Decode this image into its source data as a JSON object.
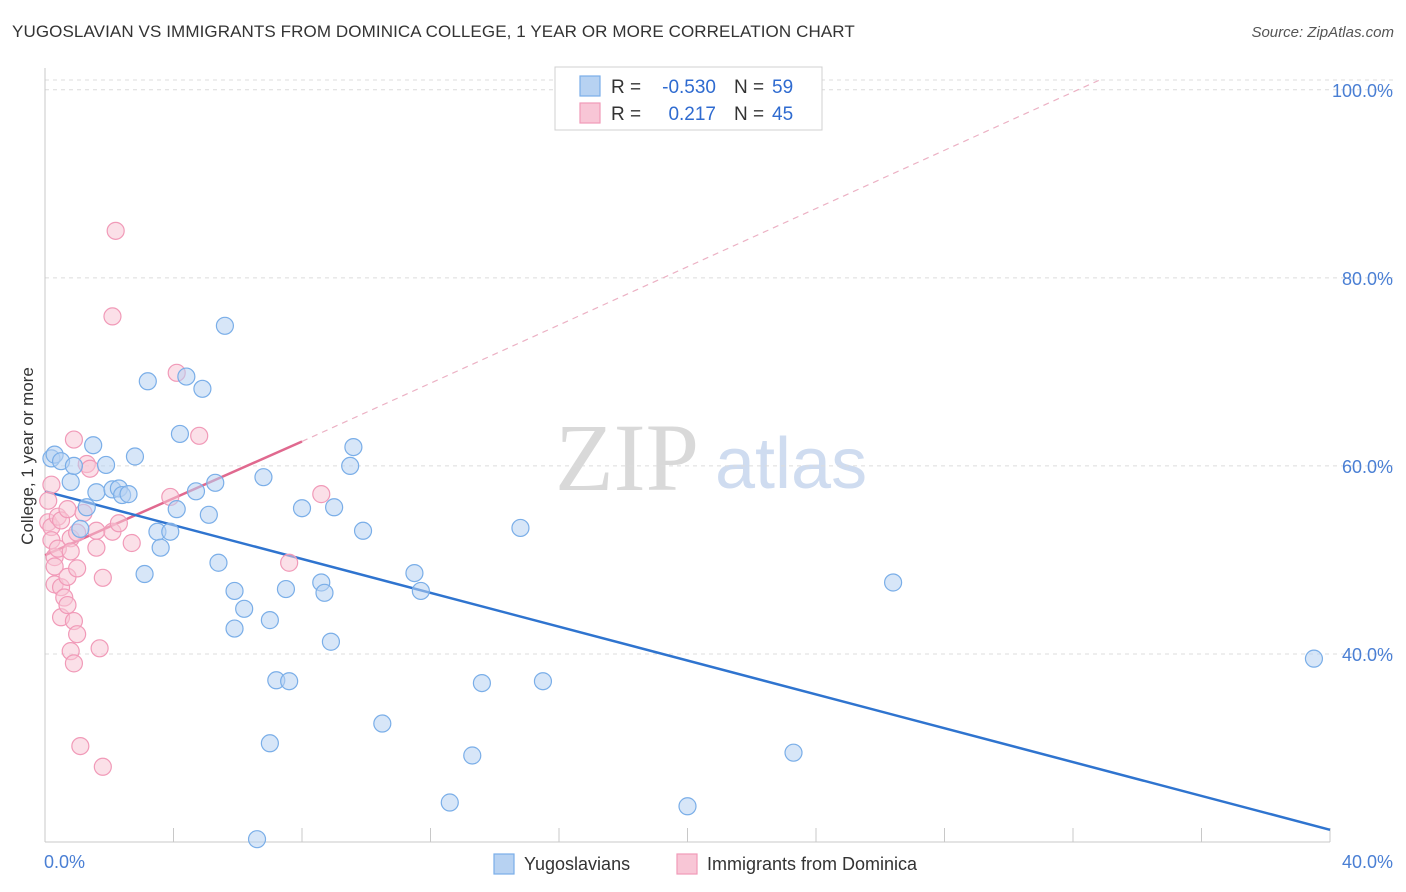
{
  "title": "YUGOSLAVIAN VS IMMIGRANTS FROM DOMINICA COLLEGE, 1 YEAR OR MORE CORRELATION CHART",
  "source": "Source: ZipAtlas.com",
  "watermark": {
    "part1": "ZIP",
    "part2": "atlas"
  },
  "legend": {
    "rows": [
      {
        "r_label": "R =",
        "r_value": "-0.530",
        "n_label": "N =",
        "n_value": "59"
      },
      {
        "r_label": "R =",
        "r_value": "0.217",
        "n_label": "N =",
        "n_value": "45"
      }
    ]
  },
  "chart_data": {
    "type": "scatter",
    "title": "YUGOSLAVIAN VS IMMIGRANTS FROM DOMINICA COLLEGE, 1 YEAR OR MORE CORRELATION CHART",
    "xlabel": "",
    "ylabel": "College, 1 year or more",
    "xlim": [
      0,
      40
    ],
    "ylim": [
      20,
      102
    ],
    "x_tick_labels": [
      "0.0%",
      "40.0%"
    ],
    "y_ticks": [
      40,
      60,
      80,
      100
    ],
    "y_tick_labels": [
      "40.0%",
      "60.0%",
      "80.0%",
      "100.0%"
    ],
    "grid": true,
    "legend_position": "top-center",
    "series": [
      {
        "name": "Yugoslavians",
        "color": "#7aaee8",
        "fill": "#b7d2f2",
        "line_color": "#2f74cf",
        "r": -0.53,
        "n": 59,
        "trend": {
          "x0": 0.0,
          "y0": 57.3,
          "x1": 40.0,
          "y1": 21.3
        },
        "points": [
          [
            0.2,
            60.8
          ],
          [
            0.3,
            61.2
          ],
          [
            0.5,
            60.5
          ],
          [
            0.8,
            58.3
          ],
          [
            0.9,
            60.0
          ],
          [
            1.1,
            53.3
          ],
          [
            1.3,
            55.6
          ],
          [
            1.5,
            62.2
          ],
          [
            1.6,
            57.2
          ],
          [
            1.9,
            60.1
          ],
          [
            2.1,
            57.5
          ],
          [
            2.3,
            57.6
          ],
          [
            2.4,
            56.9
          ],
          [
            2.6,
            57.0
          ],
          [
            2.8,
            61.0
          ],
          [
            3.1,
            48.5
          ],
          [
            3.2,
            69.0
          ],
          [
            3.5,
            53.0
          ],
          [
            3.6,
            51.3
          ],
          [
            3.9,
            53.0
          ],
          [
            4.1,
            55.4
          ],
          [
            4.2,
            63.4
          ],
          [
            4.4,
            69.5
          ],
          [
            4.7,
            57.3
          ],
          [
            4.9,
            68.2
          ],
          [
            5.1,
            54.8
          ],
          [
            5.3,
            58.2
          ],
          [
            5.4,
            49.7
          ],
          [
            5.6,
            74.9
          ],
          [
            5.9,
            46.7
          ],
          [
            5.9,
            42.7
          ],
          [
            6.2,
            44.8
          ],
          [
            6.6,
            20.3
          ],
          [
            6.8,
            58.8
          ],
          [
            7.0,
            30.5
          ],
          [
            7.0,
            43.6
          ],
          [
            7.2,
            37.2
          ],
          [
            7.5,
            46.9
          ],
          [
            7.6,
            37.1
          ],
          [
            8.0,
            55.5
          ],
          [
            8.6,
            47.6
          ],
          [
            8.7,
            46.5
          ],
          [
            8.9,
            41.3
          ],
          [
            9.0,
            55.6
          ],
          [
            9.5,
            60.0
          ],
          [
            9.6,
            62.0
          ],
          [
            9.9,
            53.1
          ],
          [
            10.5,
            32.6
          ],
          [
            11.5,
            48.6
          ],
          [
            11.7,
            46.7
          ],
          [
            12.6,
            24.2
          ],
          [
            13.3,
            29.2
          ],
          [
            13.6,
            36.9
          ],
          [
            14.8,
            53.4
          ],
          [
            15.5,
            37.1
          ],
          [
            20.0,
            23.8
          ],
          [
            23.3,
            29.5
          ],
          [
            26.4,
            47.6
          ],
          [
            39.5,
            39.5
          ]
        ]
      },
      {
        "name": "Immigrants from Dominica",
        "color": "#f19ab8",
        "fill": "#f8c6d6",
        "line_color": "#e0698f",
        "r": 0.217,
        "n": 45,
        "trend": {
          "x0": 0.0,
          "y0": 50.5,
          "x1": 8.0,
          "y1": 62.6
        },
        "trend_ext": {
          "x0": 8.0,
          "y0": 62.6,
          "x1": 32.8,
          "y1": 101.0
        },
        "points": [
          [
            0.1,
            54.0
          ],
          [
            0.1,
            56.3
          ],
          [
            0.2,
            58.0
          ],
          [
            0.2,
            53.5
          ],
          [
            0.2,
            52.1
          ],
          [
            0.3,
            50.3
          ],
          [
            0.3,
            49.3
          ],
          [
            0.3,
            47.4
          ],
          [
            0.4,
            54.6
          ],
          [
            0.4,
            51.2
          ],
          [
            0.5,
            47.1
          ],
          [
            0.5,
            43.9
          ],
          [
            0.5,
            54.2
          ],
          [
            0.6,
            46.0
          ],
          [
            0.7,
            55.4
          ],
          [
            0.7,
            48.2
          ],
          [
            0.7,
            45.2
          ],
          [
            0.8,
            52.3
          ],
          [
            0.8,
            50.9
          ],
          [
            0.8,
            40.3
          ],
          [
            0.9,
            62.8
          ],
          [
            0.9,
            43.5
          ],
          [
            0.9,
            39.0
          ],
          [
            1.0,
            49.1
          ],
          [
            1.0,
            52.9
          ],
          [
            1.0,
            42.1
          ],
          [
            1.1,
            30.2
          ],
          [
            1.2,
            55.0
          ],
          [
            1.3,
            60.2
          ],
          [
            1.4,
            59.7
          ],
          [
            1.6,
            53.1
          ],
          [
            1.6,
            51.3
          ],
          [
            1.7,
            40.6
          ],
          [
            1.8,
            48.1
          ],
          [
            1.8,
            28.0
          ],
          [
            2.1,
            75.9
          ],
          [
            2.1,
            53.0
          ],
          [
            2.2,
            85.0
          ],
          [
            2.3,
            53.9
          ],
          [
            2.7,
            51.8
          ],
          [
            3.9,
            56.7
          ],
          [
            4.1,
            69.9
          ],
          [
            4.8,
            63.2
          ],
          [
            7.6,
            49.7
          ],
          [
            8.6,
            57.0
          ]
        ]
      }
    ]
  }
}
